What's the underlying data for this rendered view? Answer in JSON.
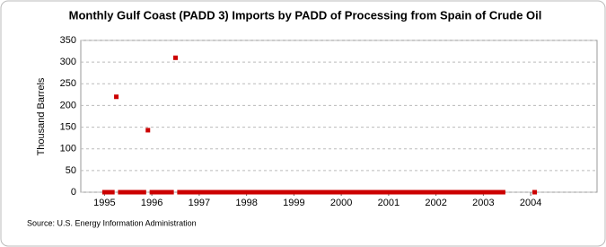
{
  "chart_data": {
    "type": "scatter",
    "title": "Monthly Gulf Coast (PADD 3) Imports by PADD of Processing from Spain of Crude Oil",
    "y_label": "Thousand Barrels",
    "source": "Source: U.S. Energy Information Administration",
    "color": "#cc0000",
    "grid": true,
    "xlim": [
      1994.5,
      2005.4
    ],
    "xticks": [
      1995,
      1996,
      1997,
      1998,
      1999,
      2000,
      2001,
      2002,
      2003,
      2004
    ],
    "ylim": [
      0,
      350
    ],
    "yticks": [
      0,
      50,
      100,
      150,
      200,
      250,
      300,
      350
    ],
    "x": [
      1995,
      1995.083,
      1995.167,
      1995.25,
      1995.333,
      1995.417,
      1995.5,
      1995.583,
      1995.667,
      1995.75,
      1995.833,
      1995.917,
      1996,
      1996.083,
      1996.167,
      1996.25,
      1996.333,
      1996.417,
      1996.5,
      1996.583,
      1996.667,
      1996.75,
      1996.833,
      1996.917,
      1997,
      1997.083,
      1997.167,
      1997.25,
      1997.333,
      1997.417,
      1997.5,
      1997.583,
      1997.667,
      1997.75,
      1997.833,
      1997.917,
      1998,
      1998.083,
      1998.167,
      1998.25,
      1998.333,
      1998.417,
      1998.5,
      1998.583,
      1998.667,
      1998.75,
      1998.833,
      1998.917,
      1999,
      1999.083,
      1999.167,
      1999.25,
      1999.333,
      1999.417,
      1999.5,
      1999.583,
      1999.667,
      1999.75,
      1999.833,
      1999.917,
      2000,
      2000.083,
      2000.167,
      2000.25,
      2000.333,
      2000.417,
      2000.5,
      2000.583,
      2000.667,
      2000.75,
      2000.833,
      2000.917,
      2001,
      2001.083,
      2001.167,
      2001.25,
      2001.333,
      2001.417,
      2001.5,
      2001.583,
      2001.667,
      2001.75,
      2001.833,
      2001.917,
      2002,
      2002.083,
      2002.167,
      2002.25,
      2002.333,
      2002.417,
      2002.5,
      2002.583,
      2002.667,
      2002.75,
      2002.833,
      2002.917,
      2003,
      2003.083,
      2003.167,
      2003.25,
      2003.333,
      2003.417,
      2004.083
    ],
    "values": [
      0,
      0,
      0,
      220,
      0,
      0,
      0,
      0,
      0,
      0,
      0,
      143,
      0,
      0,
      0,
      0,
      0,
      0,
      310,
      0,
      0,
      0,
      0,
      0,
      0,
      0,
      0,
      0,
      0,
      0,
      0,
      0,
      0,
      0,
      0,
      0,
      0,
      0,
      0,
      0,
      0,
      0,
      0,
      0,
      0,
      0,
      0,
      0,
      0,
      0,
      0,
      0,
      0,
      0,
      0,
      0,
      0,
      0,
      0,
      0,
      0,
      0,
      0,
      0,
      0,
      0,
      0,
      0,
      0,
      0,
      0,
      0,
      0,
      0,
      0,
      0,
      0,
      0,
      0,
      0,
      0,
      0,
      0,
      0,
      0,
      0,
      0,
      0,
      0,
      0,
      0,
      0,
      0,
      0,
      0,
      0,
      0,
      0,
      0,
      0,
      0,
      0,
      0
    ]
  }
}
